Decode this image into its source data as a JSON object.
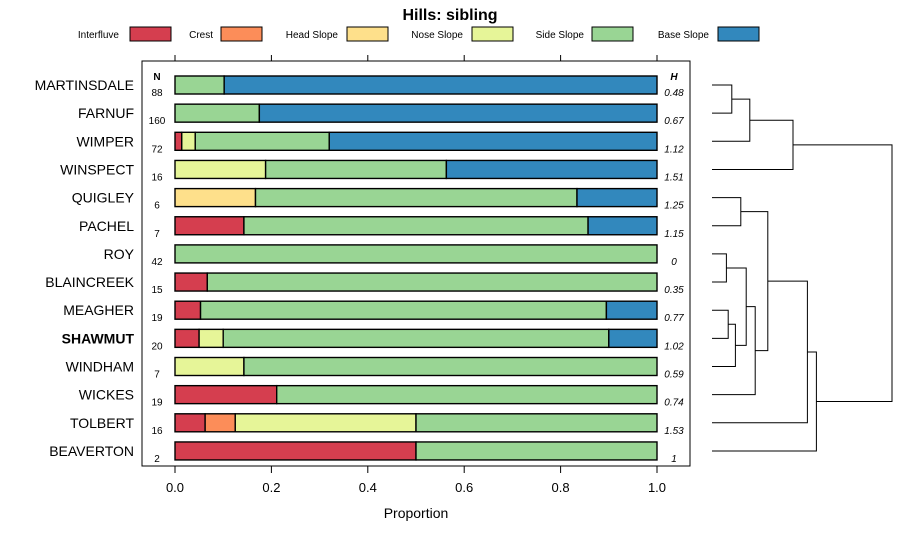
{
  "chart_data": {
    "type": "bar",
    "stacked": true,
    "orientation": "horizontal",
    "title": "Hills: sibling",
    "xlabel": "Proportion",
    "ylabel": "",
    "xlim": [
      0,
      1
    ],
    "xticks": [
      "0.0",
      "0.2",
      "0.4",
      "0.6",
      "0.8",
      "1.0"
    ],
    "xtick_values": [
      0,
      0.2,
      0.4,
      0.6,
      0.8,
      1.0
    ],
    "n_header": "N",
    "h_header": "H",
    "legend_position": "top",
    "highlighted_category": "SHAWMUT",
    "series": [
      {
        "name": "Interfluve",
        "color": "#D53E4F"
      },
      {
        "name": "Crest",
        "color": "#FC8D59"
      },
      {
        "name": "Head Slope",
        "color": "#FEE08B"
      },
      {
        "name": "Nose Slope",
        "color": "#E6F598"
      },
      {
        "name": "Side Slope",
        "color": "#99D594"
      },
      {
        "name": "Base Slope",
        "color": "#3288BD"
      }
    ],
    "rows": [
      {
        "name": "MARTINSDALE",
        "n": "88",
        "h": "0.48",
        "values": [
          0,
          0,
          0,
          0,
          0.102,
          0.898
        ]
      },
      {
        "name": "FARNUF",
        "n": "160",
        "h": "0.67",
        "values": [
          0,
          0,
          0,
          0,
          0.175,
          0.825
        ]
      },
      {
        "name": "WIMPER",
        "n": "72",
        "h": "1.12",
        "values": [
          0.014,
          0,
          0,
          0.028,
          0.278,
          0.68
        ]
      },
      {
        "name": "WINSPECT",
        "n": "16",
        "h": "1.51",
        "values": [
          0,
          0,
          0,
          0.188,
          0.375,
          0.437
        ]
      },
      {
        "name": "QUIGLEY",
        "n": "6",
        "h": "1.25",
        "values": [
          0,
          0,
          0.167,
          0,
          0.667,
          0.166
        ]
      },
      {
        "name": "PACHEL",
        "n": "7",
        "h": "1.15",
        "values": [
          0.143,
          0,
          0,
          0,
          0.714,
          0.143
        ]
      },
      {
        "name": "ROY",
        "n": "42",
        "h": "0",
        "values": [
          0,
          0,
          0,
          0,
          1.0,
          0
        ]
      },
      {
        "name": "BLAINCREEK",
        "n": "15",
        "h": "0.35",
        "values": [
          0.067,
          0,
          0,
          0,
          0.933,
          0
        ]
      },
      {
        "name": "MEAGHER",
        "n": "19",
        "h": "0.77",
        "values": [
          0.053,
          0,
          0,
          0,
          0.842,
          0.105
        ]
      },
      {
        "name": "SHAWMUT",
        "n": "20",
        "h": "1.02",
        "values": [
          0.05,
          0,
          0,
          0.05,
          0.8,
          0.1
        ]
      },
      {
        "name": "WINDHAM",
        "n": "7",
        "h": "0.59",
        "values": [
          0,
          0,
          0,
          0.143,
          0.857,
          0
        ]
      },
      {
        "name": "WICKES",
        "n": "19",
        "h": "0.74",
        "values": [
          0.211,
          0,
          0,
          0,
          0.789,
          0
        ]
      },
      {
        "name": "TOLBERT",
        "n": "16",
        "h": "1.53",
        "values": [
          0.0625,
          0.0625,
          0,
          0.375,
          0.5,
          0
        ]
      },
      {
        "name": "BEAVERTON",
        "n": "2",
        "h": "1",
        "values": [
          0.5,
          0,
          0,
          0,
          0.5,
          0
        ]
      }
    ],
    "dendrogram": {
      "note": "hierarchical clustering of rows (row index = position top to bottom); heights are relative merge levels 0-1",
      "merges": [
        {
          "a": "r0",
          "b": "r1",
          "h": 0.11
        },
        {
          "a": "m0",
          "b": "r2",
          "h": 0.21
        },
        {
          "a": "m1",
          "b": "r3",
          "h": 0.45
        },
        {
          "a": "r4",
          "b": "r5",
          "h": 0.16
        },
        {
          "a": "r6",
          "b": "r7",
          "h": 0.08
        },
        {
          "a": "r8",
          "b": "r9",
          "h": 0.09
        },
        {
          "a": "m5",
          "b": "r10",
          "h": 0.13
        },
        {
          "a": "m4",
          "b": "m6",
          "h": 0.19
        },
        {
          "a": "m7",
          "b": "r11",
          "h": 0.24
        },
        {
          "a": "m3",
          "b": "m8",
          "h": 0.31
        },
        {
          "a": "m9",
          "b": "r12",
          "h": 0.53
        },
        {
          "a": "m10",
          "b": "r13",
          "h": 0.58
        },
        {
          "a": "m2",
          "b": "m11",
          "h": 1.0
        }
      ]
    }
  }
}
